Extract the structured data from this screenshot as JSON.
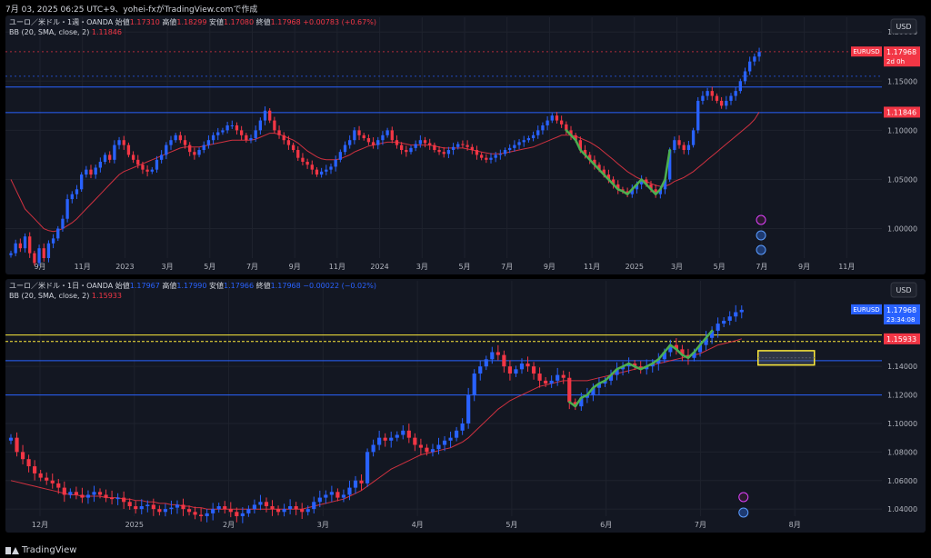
{
  "header": {
    "timestamp": "7月 03, 2025 06:25 UTC+9、yohei-fxがTradingView.comで作成"
  },
  "footer": {
    "brand": "TradingView"
  },
  "colors": {
    "bg": "#131722",
    "up": "#089981",
    "down": "#f23645",
    "grid": "#1e222d",
    "hline": "#2962ff",
    "bb": "#f23645",
    "green_curve": "#4caf50",
    "yellow": "#ffeb3b"
  },
  "chart_data": [
    {
      "type": "candlestick",
      "title": "ユーロ／米ドル・1週・OANDA",
      "ohlc_text": {
        "o_label": "始値",
        "o": "1.17310",
        "h_label": "高値",
        "h": "1.18299",
        "l_label": "安値",
        "l": "1.17080",
        "c_label": "終値",
        "c": "1.17968",
        "change": "+0.00783 (+0.67%)"
      },
      "indicator": {
        "label": "BB (20, SMA, close, 2)",
        "value": "1.11846"
      },
      "currency": "USD",
      "ylim": [
        0.97,
        1.215
      ],
      "y_ticks": [
        "1.20000",
        "1.15000",
        "1.10000",
        "1.05000",
        "1.00000"
      ],
      "x_ticks": [
        "9月",
        "11月",
        "2023",
        "3月",
        "5月",
        "7月",
        "9月",
        "11月",
        "2024",
        "3月",
        "5月",
        "7月",
        "9月",
        "11月",
        "2025",
        "3月",
        "5月",
        "7月",
        "9月",
        "11月"
      ],
      "symbol_tag": {
        "name": "EURUSD",
        "price": "1.17968",
        "timer": "2d 0h"
      },
      "level_tag": "1.11846",
      "horizontal_lines": [
        1.144,
        1.118
      ],
      "dashed_levels": [
        1.18,
        1.155
      ],
      "series": [
        {
          "name": "close",
          "values": [
            0.975,
            0.985,
            0.98,
            0.992,
            0.975,
            0.965,
            0.98,
            0.97,
            0.985,
            0.99,
            1.0,
            1.01,
            1.03,
            1.035,
            1.04,
            1.055,
            1.06,
            1.055,
            1.062,
            1.068,
            1.075,
            1.07,
            1.085,
            1.09,
            1.085,
            1.075,
            1.07,
            1.065,
            1.06,
            1.058,
            1.06,
            1.07,
            1.075,
            1.085,
            1.09,
            1.095,
            1.09,
            1.085,
            1.078,
            1.075,
            1.08,
            1.085,
            1.09,
            1.095,
            1.098,
            1.1,
            1.105,
            1.105,
            1.1,
            1.095,
            1.09,
            1.092,
            1.1,
            1.11,
            1.12,
            1.11,
            1.1,
            1.095,
            1.09,
            1.085,
            1.08,
            1.072,
            1.068,
            1.065,
            1.06,
            1.055,
            1.058,
            1.06,
            1.063,
            1.07,
            1.078,
            1.085,
            1.09,
            1.1,
            1.095,
            1.092,
            1.088,
            1.085,
            1.09,
            1.095,
            1.1,
            1.09,
            1.085,
            1.08,
            1.078,
            1.082,
            1.086,
            1.09,
            1.087,
            1.085,
            1.08,
            1.078,
            1.076,
            1.08,
            1.083,
            1.086,
            1.085,
            1.083,
            1.08,
            1.075,
            1.072,
            1.07,
            1.072,
            1.075,
            1.076,
            1.08,
            1.082,
            1.085,
            1.088,
            1.09,
            1.092,
            1.095,
            1.1,
            1.105,
            1.11,
            1.115,
            1.11,
            1.106,
            1.1,
            1.095,
            1.09,
            1.08,
            1.075,
            1.07,
            1.065,
            1.06,
            1.055,
            1.05,
            1.045,
            1.04,
            1.038,
            1.035,
            1.04,
            1.045,
            1.05,
            1.045,
            1.04,
            1.035,
            1.04,
            1.05,
            1.08,
            1.09,
            1.085,
            1.08,
            1.085,
            1.1,
            1.13,
            1.135,
            1.14,
            1.135,
            1.13,
            1.125,
            1.13,
            1.135,
            1.14,
            1.15,
            1.16,
            1.17,
            1.175,
            1.17968
          ]
        },
        {
          "name": "BB basis",
          "values": [
            1.05,
            1.04,
            1.03,
            1.02,
            1.015,
            1.01,
            1.005,
            1.0,
            0.998,
            0.997,
            0.998,
            1.0,
            1.003,
            1.006,
            1.01,
            1.015,
            1.02,
            1.025,
            1.03,
            1.035,
            1.04,
            1.045,
            1.05,
            1.055,
            1.058,
            1.06,
            1.062,
            1.064,
            1.066,
            1.068,
            1.07,
            1.072,
            1.074,
            1.076,
            1.078,
            1.08,
            1.082,
            1.083,
            1.083,
            1.083,
            1.083,
            1.084,
            1.085,
            1.086,
            1.087,
            1.088,
            1.089,
            1.09,
            1.09,
            1.09,
            1.09,
            1.09,
            1.091,
            1.093,
            1.095,
            1.097,
            1.097,
            1.096,
            1.094,
            1.092,
            1.09,
            1.087,
            1.083,
            1.079,
            1.076,
            1.073,
            1.071,
            1.07,
            1.07,
            1.07,
            1.071,
            1.073,
            1.075,
            1.078,
            1.08,
            1.082,
            1.084,
            1.085,
            1.086,
            1.087,
            1.088,
            1.088,
            1.088,
            1.087,
            1.086,
            1.085,
            1.085,
            1.085,
            1.085,
            1.085,
            1.084,
            1.083,
            1.082,
            1.082,
            1.082,
            1.082,
            1.082,
            1.081,
            1.08,
            1.079,
            1.078,
            1.077,
            1.076,
            1.076,
            1.076,
            1.077,
            1.078,
            1.079,
            1.08,
            1.081,
            1.082,
            1.083,
            1.085,
            1.087,
            1.089,
            1.091,
            1.093,
            1.095,
            1.095,
            1.095,
            1.094,
            1.092,
            1.09,
            1.088,
            1.085,
            1.082,
            1.078,
            1.074,
            1.07,
            1.066,
            1.062,
            1.058,
            1.055,
            1.052,
            1.05,
            1.048,
            1.046,
            1.044,
            1.043,
            1.043,
            1.045,
            1.048,
            1.05,
            1.052,
            1.055,
            1.058,
            1.062,
            1.066,
            1.07,
            1.074,
            1.078,
            1.082,
            1.086,
            1.09,
            1.094,
            1.098,
            1.102,
            1.106,
            1.111,
            1.11846
          ]
        }
      ],
      "green_curve_range": [
        118,
        140
      ]
    },
    {
      "type": "candlestick",
      "title": "ユーロ／米ドル・1日・OANDA",
      "ohlc_text": {
        "o_label": "始値",
        "o": "1.17967",
        "h_label": "高値",
        "h": "1.17990",
        "l_label": "安値",
        "l": "1.17966",
        "c_label": "終値",
        "c": "1.17968",
        "change": "−0.00022 (−0.02%)"
      },
      "indicator": {
        "label": "BB (20, SMA, close, 2)",
        "value": "1.15933"
      },
      "currency": "USD",
      "ylim": [
        1.035,
        1.2
      ],
      "y_ticks": [
        "1.14000",
        "1.12000",
        "1.10000",
        "1.08000",
        "1.06000",
        "1.04000"
      ],
      "x_ticks": [
        "12月",
        "2025",
        "2月",
        "3月",
        "4月",
        "5月",
        "6月",
        "7月",
        "8月"
      ],
      "symbol_tag": {
        "name": "EURUSD",
        "price": "1.17968",
        "timer": "23:34:08"
      },
      "level_tag": "1.15933",
      "horizontal_lines": [
        1.144,
        1.12
      ],
      "yellow_levels": [
        1.162,
        1.1575
      ],
      "zone": {
        "from": 1.151,
        "to": 1.141
      },
      "series": [
        {
          "name": "close",
          "values": [
            1.09,
            1.08,
            1.075,
            1.07,
            1.065,
            1.062,
            1.06,
            1.058,
            1.055,
            1.05,
            1.052,
            1.05,
            1.048,
            1.05,
            1.052,
            1.05,
            1.048,
            1.047,
            1.048,
            1.045,
            1.042,
            1.04,
            1.042,
            1.043,
            1.04,
            1.038,
            1.04,
            1.041,
            1.043,
            1.04,
            1.038,
            1.036,
            1.035,
            1.037,
            1.04,
            1.042,
            1.04,
            1.038,
            1.035,
            1.037,
            1.04,
            1.043,
            1.045,
            1.042,
            1.04,
            1.038,
            1.04,
            1.042,
            1.04,
            1.038,
            1.04,
            1.045,
            1.048,
            1.05,
            1.052,
            1.048,
            1.05,
            1.055,
            1.06,
            1.058,
            1.08,
            1.085,
            1.09,
            1.088,
            1.09,
            1.092,
            1.095,
            1.09,
            1.085,
            1.083,
            1.08,
            1.082,
            1.085,
            1.088,
            1.09,
            1.095,
            1.1,
            1.12,
            1.135,
            1.14,
            1.145,
            1.15,
            1.148,
            1.14,
            1.135,
            1.138,
            1.142,
            1.14,
            1.135,
            1.13,
            1.128,
            1.13,
            1.134,
            1.132,
            1.115,
            1.112,
            1.118,
            1.12,
            1.125,
            1.128,
            1.13,
            1.134,
            1.138,
            1.14,
            1.142,
            1.14,
            1.138,
            1.14,
            1.142,
            1.145,
            1.15,
            1.155,
            1.152,
            1.148,
            1.146,
            1.15,
            1.155,
            1.16,
            1.165,
            1.17,
            1.172,
            1.175,
            1.178,
            1.17968
          ]
        },
        {
          "name": "BB basis",
          "values": [
            1.06,
            1.059,
            1.058,
            1.057,
            1.056,
            1.055,
            1.054,
            1.053,
            1.052,
            1.051,
            1.05,
            1.05,
            1.049,
            1.049,
            1.049,
            1.049,
            1.048,
            1.048,
            1.048,
            1.047,
            1.047,
            1.046,
            1.046,
            1.045,
            1.045,
            1.044,
            1.044,
            1.043,
            1.043,
            1.042,
            1.042,
            1.041,
            1.041,
            1.04,
            1.04,
            1.04,
            1.04,
            1.04,
            1.04,
            1.04,
            1.04,
            1.04,
            1.04,
            1.04,
            1.04,
            1.04,
            1.04,
            1.04,
            1.04,
            1.04,
            1.041,
            1.042,
            1.043,
            1.044,
            1.045,
            1.046,
            1.047,
            1.049,
            1.051,
            1.053,
            1.056,
            1.059,
            1.062,
            1.065,
            1.068,
            1.07,
            1.072,
            1.074,
            1.076,
            1.078,
            1.079,
            1.08,
            1.081,
            1.082,
            1.083,
            1.085,
            1.087,
            1.09,
            1.094,
            1.098,
            1.102,
            1.106,
            1.11,
            1.113,
            1.116,
            1.118,
            1.12,
            1.122,
            1.124,
            1.126,
            1.127,
            1.128,
            1.129,
            1.13,
            1.13,
            1.13,
            1.13,
            1.13,
            1.131,
            1.132,
            1.133,
            1.134,
            1.135,
            1.136,
            1.137,
            1.138,
            1.139,
            1.14,
            1.141,
            1.142,
            1.143,
            1.144,
            1.145,
            1.146,
            1.147,
            1.148,
            1.149,
            1.151,
            1.153,
            1.155,
            1.156,
            1.157,
            1.158,
            1.15933
          ]
        }
      ],
      "green_curve_range": [
        94,
        118
      ]
    }
  ]
}
